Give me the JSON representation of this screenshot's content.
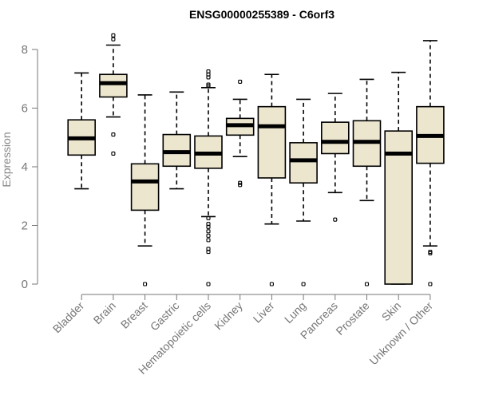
{
  "chart_data": {
    "type": "boxplot",
    "title": "ENSG00000255389 - C6orf3",
    "xlabel": "",
    "ylabel": "Expression",
    "ylim": [
      0,
      8.4
    ],
    "yticks": [
      0,
      2,
      4,
      6,
      8
    ],
    "box_fill": "#ede6cf",
    "categories": [
      "Bladder",
      "Brain",
      "Breast",
      "Gastric",
      "Hematopoietic cells",
      "Kidney",
      "Liver",
      "Lung",
      "Pancreas",
      "Prostate",
      "Skin",
      "Unknown / Other"
    ],
    "series": [
      {
        "name": "Bladder",
        "whisker_low": 3.25,
        "q1": 4.4,
        "median": 4.97,
        "q3": 5.6,
        "whisker_high": 7.2,
        "outliers": []
      },
      {
        "name": "Brain",
        "whisker_low": 5.7,
        "q1": 6.38,
        "median": 6.85,
        "q3": 7.15,
        "whisker_high": 8.15,
        "outliers": [
          8.35,
          8.48,
          5.1,
          4.45
        ]
      },
      {
        "name": "Breast",
        "whisker_low": 1.3,
        "q1": 2.52,
        "median": 3.5,
        "q3": 4.1,
        "whisker_high": 6.45,
        "outliers": [
          0
        ]
      },
      {
        "name": "Gastric",
        "whisker_low": 3.25,
        "q1": 4.02,
        "median": 4.5,
        "q3": 5.1,
        "whisker_high": 6.55,
        "outliers": []
      },
      {
        "name": "Hematopoietic cells",
        "whisker_low": 2.3,
        "q1": 3.95,
        "median": 4.45,
        "q3": 5.05,
        "whisker_high": 6.7,
        "outliers": [
          7.25,
          7.15,
          7.05,
          6.8,
          6.75,
          2.25,
          2.05,
          1.95,
          1.8,
          1.65,
          1.5,
          1.2,
          1.1,
          0
        ]
      },
      {
        "name": "Kidney",
        "whisker_low": 4.35,
        "q1": 5.08,
        "median": 5.42,
        "q3": 5.65,
        "whisker_high": 6.3,
        "outliers": [
          6.9,
          3.45,
          3.38
        ]
      },
      {
        "name": "Liver",
        "whisker_low": 2.05,
        "q1": 3.62,
        "median": 5.38,
        "q3": 6.05,
        "whisker_high": 7.15,
        "outliers": [
          0
        ]
      },
      {
        "name": "Lung",
        "whisker_low": 2.15,
        "q1": 3.45,
        "median": 4.22,
        "q3": 4.82,
        "whisker_high": 6.3,
        "outliers": [
          0
        ]
      },
      {
        "name": "Pancreas",
        "whisker_low": 3.12,
        "q1": 4.45,
        "median": 4.85,
        "q3": 5.52,
        "whisker_high": 6.5,
        "outliers": [
          2.2
        ]
      },
      {
        "name": "Prostate",
        "whisker_low": 2.85,
        "q1": 4.02,
        "median": 4.85,
        "q3": 5.57,
        "whisker_high": 6.98,
        "outliers": [
          0
        ]
      },
      {
        "name": "Skin",
        "whisker_low": 0,
        "q1": 0,
        "median": 4.45,
        "q3": 5.22,
        "whisker_high": 7.22,
        "outliers": []
      },
      {
        "name": "Unknown / Other",
        "whisker_low": 1.3,
        "q1": 4.12,
        "median": 5.05,
        "q3": 6.05,
        "whisker_high": 8.3,
        "outliers": [
          1.1,
          1.05,
          0
        ]
      }
    ]
  }
}
